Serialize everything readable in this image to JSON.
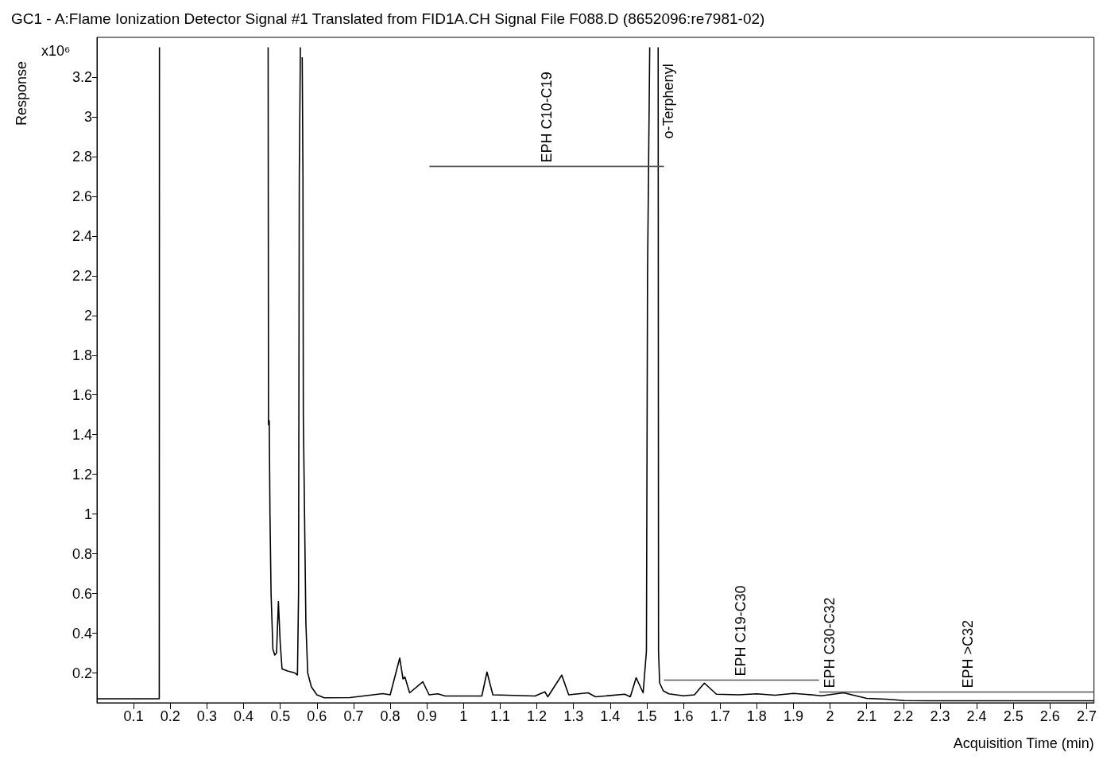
{
  "chart_data": {
    "type": "line",
    "title": "GC1 - A:Flame Ionization Detector Signal #1 Translated from FID1A.CH Signal File F088.D (8652096:re7981-02)",
    "xlabel": "Acquisition Time (min)",
    "ylabel": "Response",
    "xlim": [
      0,
      2.72
    ],
    "ylim": [
      0.05,
      3.4
    ],
    "xticks": [
      0.1,
      0.2,
      0.3,
      0.4,
      0.5,
      0.6,
      0.7,
      0.8,
      0.9,
      1,
      1.1,
      1.2,
      1.3,
      1.4,
      1.5,
      1.6,
      1.7,
      1.8,
      1.9,
      2,
      2.1,
      2.2,
      2.3,
      2.4,
      2.5,
      2.6,
      2.7
    ],
    "yticks": [
      0.2,
      0.4,
      0.6,
      0.8,
      1,
      1.2,
      1.4,
      1.6,
      1.8,
      2,
      2.2,
      2.4,
      2.6,
      2.8,
      3,
      3.2
    ],
    "grid": false,
    "marker": "none",
    "line_style": "solid",
    "series": [
      {
        "color": "#000000",
        "x": [
          0,
          0.17,
          0.1705,
          0.171,
          0.465,
          0.467,
          0.468,
          0.47,
          0.472,
          0.475,
          0.48,
          0.485,
          0.49,
          0.495,
          0.5,
          0.505,
          0.52,
          0.54,
          0.547,
          0.55,
          0.552,
          0.555,
          0.558,
          0.56,
          0.562,
          0.563,
          0.57,
          0.575,
          0.585,
          0.6,
          0.62,
          0.69,
          0.78,
          0.8,
          0.826,
          0.835,
          0.84,
          0.853,
          0.889,
          0.906,
          0.93,
          0.95,
          1.05,
          1.064,
          1.08,
          1.195,
          1.222,
          1.23,
          1.268,
          1.287,
          1.34,
          1.36,
          1.44,
          1.455,
          1.471,
          1.49,
          1.499,
          1.502,
          1.508,
          1.52,
          1.531,
          1.532,
          1.535,
          1.545,
          1.56,
          1.6,
          1.63,
          1.657,
          1.69,
          1.75,
          1.8,
          1.85,
          1.9,
          1.95,
          1.976,
          2.037,
          2.1,
          2.154,
          2.203,
          2.275,
          2.685,
          2.72
        ],
        "values": [
          0.07,
          0.07,
          3.35,
          null,
          null,
          3.35,
          1.45,
          1.47,
          1.0,
          0.6,
          0.32,
          0.29,
          0.3,
          0.56,
          0.35,
          0.22,
          0.21,
          0.2,
          0.19,
          0.6,
          2.7,
          3.35,
          null,
          3.3,
          2.7,
          1.5,
          0.45,
          0.2,
          0.13,
          0.09,
          0.075,
          0.076,
          0.096,
          0.09,
          0.275,
          0.17,
          0.18,
          0.1,
          0.156,
          0.09,
          0.095,
          0.084,
          0.084,
          0.205,
          0.09,
          0.084,
          0.105,
          0.08,
          0.189,
          0.09,
          0.1,
          0.08,
          0.093,
          0.08,
          0.176,
          0.1,
          0.31,
          2.2,
          3.35,
          null,
          3.35,
          0.31,
          0.15,
          0.11,
          0.095,
          0.085,
          0.09,
          0.149,
          0.093,
          0.09,
          0.095,
          0.088,
          0.097,
          0.09,
          0.085,
          0.1,
          0.072,
          0.068,
          0.061,
          0.06,
          0.06,
          0.06
        ]
      },
      {
        "color": "#555555",
        "x": [
          0.907,
          1.547
        ],
        "values": [
          2.75,
          2.75
        ]
      },
      {
        "color": "#555555",
        "x": [
          1.547,
          1.97
        ],
        "values": [
          0.164,
          0.164
        ]
      },
      {
        "color": "#555555",
        "x": [
          1.97,
          2.72
        ],
        "values": [
          0.104,
          0.104
        ]
      }
    ],
    "annotations": [
      "x10⁶",
      {
        "text": "EPH C10-C19",
        "x": 1.228,
        "y": 2.75
      },
      "o-Terphenyl",
      {
        "text": "EPH C19-C30",
        "x": 1.757,
        "y": 0.164
      },
      {
        "text": "EPH C30-C32",
        "x": 1.998,
        "y": 0.104
      },
      {
        "text": "EPH >C32",
        "x": 2.375,
        "y": 0.104
      }
    ]
  }
}
